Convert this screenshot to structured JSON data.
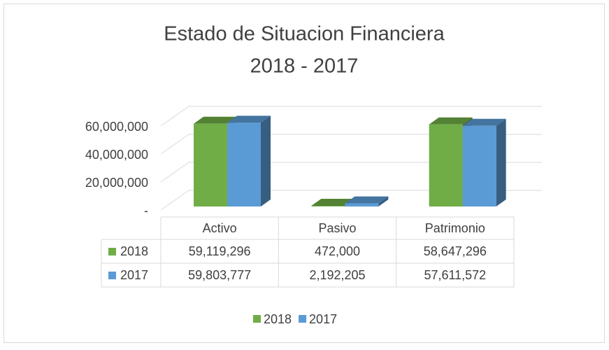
{
  "chart_data": {
    "type": "bar3d",
    "title": "Estado de Situacion Financiera",
    "subtitle": "2018 - 2017",
    "categories": [
      "Activo",
      "Pasivo",
      "Patrimonio"
    ],
    "series": [
      {
        "name": "2018",
        "color": "#70ad47",
        "values": [
          59119296,
          472000,
          58647296
        ],
        "value_labels": [
          "59,119,296",
          "472,000",
          "58,647,296"
        ]
      },
      {
        "name": "2017",
        "color": "#5b9bd5",
        "values": [
          59803777,
          2192205,
          57611572
        ],
        "value_labels": [
          "59,803,777",
          "2,192,205",
          "57,611,572"
        ]
      }
    ],
    "ylim": [
      0,
      60000000
    ],
    "yticks": [
      {
        "value": 0,
        "label": "-"
      },
      {
        "value": 20000000,
        "label": "20,000,000"
      },
      {
        "value": 40000000,
        "label": "40,000,000"
      },
      {
        "value": 60000000,
        "label": "60,000,000"
      }
    ],
    "grid": true,
    "legend": "bottom"
  }
}
